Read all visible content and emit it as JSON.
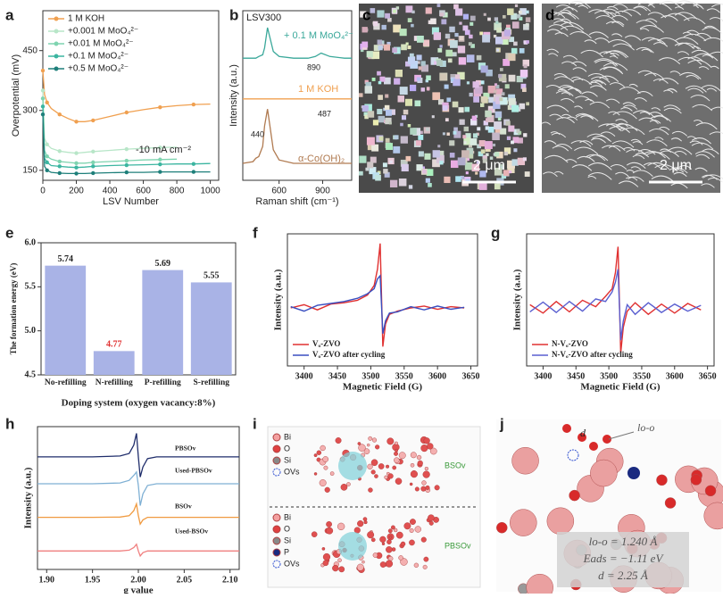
{
  "chart_data": [
    {
      "type": "line",
      "panel": "a",
      "x_label": "LSV Number",
      "y_label": "Overpotential (mV)",
      "markers": true,
      "legend": "upper left",
      "annotations": [
        "-10 mA cm⁻²"
      ],
      "x": [
        0,
        10,
        25,
        50,
        100,
        150,
        200,
        250,
        300,
        400,
        500,
        600,
        700,
        800,
        900,
        1000
      ],
      "xlim": [
        0,
        1050
      ],
      "xticks": [
        0,
        200,
        400,
        600,
        800,
        1000
      ],
      "ylim": [
        125,
        550
      ],
      "yticks": [
        150,
        300,
        450
      ],
      "series": [
        {
          "name": "1 M  KOH",
          "color": "#f0a050",
          "values": [
            400,
            340,
            320,
            305,
            290,
            280,
            272,
            272,
            275,
            285,
            295,
            302,
            308,
            312,
            315,
            316
          ]
        },
        {
          "name": "+0.001 M MoO₄²⁻",
          "color": "#b8e6c8",
          "values": [
            350,
            230,
            215,
            205,
            198,
            195,
            193,
            195,
            197,
            200,
            203,
            205,
            207,
            208,
            null,
            null
          ]
        },
        {
          "name": "+0.01 M MoO₄²⁻",
          "color": "#7fd4b0",
          "values": [
            330,
            200,
            185,
            178,
            172,
            170,
            168,
            168,
            170,
            172,
            174,
            176,
            177,
            178,
            null,
            null
          ]
        },
        {
          "name": "+0.1 M MoO₄²⁻",
          "color": "#3bb5a0",
          "values": [
            310,
            180,
            170,
            162,
            160,
            158,
            157,
            158,
            160,
            162,
            163,
            164,
            165,
            166,
            166,
            167
          ]
        },
        {
          "name": "+0.5 M MoO₄²⁻",
          "color": "#1e7f7a",
          "values": [
            290,
            160,
            150,
            145,
            143,
            142,
            142,
            142,
            143,
            144,
            145,
            145,
            146,
            146,
            146,
            146
          ]
        }
      ]
    },
    {
      "type": "line",
      "panel": "b",
      "x_label": "Raman shift (cm⁻¹)",
      "y_label": "Intensity (a.u.)",
      "legend": "inline",
      "annotations": [
        "LSV300",
        "890",
        "487",
        "440"
      ],
      "x": [
        350,
        420,
        440,
        460,
        487,
        500,
        520,
        560,
        600,
        700,
        800,
        850,
        890,
        950,
        1050,
        1100
      ],
      "xlim": [
        350,
        1100
      ],
      "xticks": [
        600,
        900
      ],
      "ylim": [
        0,
        10
      ],
      "series": [
        {
          "name": "+ 0.1 M MoO₄²⁻",
          "color": "#3aa89a",
          "values": [
            7.2,
            7.2,
            7.2,
            7.3,
            7.4,
            7.8,
            9.0,
            7.6,
            7.3,
            7.2,
            7.2,
            7.3,
            7.5,
            7.3,
            7.2,
            7.2
          ]
        },
        {
          "name": "1 M KOH",
          "color": "#f0a050",
          "values": [
            4.8,
            4.8,
            4.8,
            4.8,
            4.8,
            4.8,
            4.8,
            4.8,
            4.8,
            4.8,
            4.8,
            4.8,
            4.8,
            4.8,
            4.8,
            4.8
          ]
        },
        {
          "name": "α-Co(OH)₂",
          "color": "#b07a50",
          "values": [
            1.0,
            1.1,
            1.3,
            1.4,
            2.0,
            3.2,
            4.2,
            1.8,
            1.2,
            1.0,
            1.0,
            1.0,
            1.0,
            1.0,
            1.0,
            1.0
          ]
        }
      ]
    },
    {
      "type": "bar",
      "panel": "e",
      "x_label": "Doping system (oxygen vacancy:8%)",
      "y_label": "The formation energy (eV)",
      "categories": [
        "No-refilling",
        "N-refilling",
        "P-refilling",
        "S-refilling"
      ],
      "values": [
        5.74,
        4.77,
        5.69,
        5.55
      ],
      "color": "#a9b3e6",
      "value_label_colors": [
        "#222222",
        "#e03030",
        "#222222",
        "#222222"
      ],
      "ylim": [
        4.5,
        6.0
      ],
      "yticks": [
        4.5,
        {
          "value": 5,
          "label": "5.0"
        },
        5.5,
        {
          "value": 6,
          "label": "6.0"
        }
      ]
    },
    {
      "type": "line",
      "panel": "f",
      "x_label": "Magnetic Field (G)",
      "y_label": "Intensity (a.u.)",
      "legend": "lower left",
      "x": [
        3380,
        3400,
        3420,
        3440,
        3460,
        3480,
        3495,
        3505,
        3510,
        3514,
        3518,
        3522,
        3528,
        3540,
        3560,
        3580,
        3600,
        3620,
        3640
      ],
      "xlim": [
        3375,
        3660
      ],
      "xticks": [
        3400,
        3450,
        3500,
        3550,
        3600,
        3650
      ],
      "ylim": [
        -0.9,
        1.15
      ],
      "series": [
        {
          "name": "Vₒ-ZVO",
          "color": "#e03030",
          "values": [
            0.0,
            0.05,
            -0.03,
            0.06,
            0.08,
            0.12,
            0.2,
            0.35,
            0.6,
            1.0,
            -0.6,
            -0.25,
            -0.1,
            -0.05,
            0.0,
            0.03,
            -0.02,
            0.02,
            0.0
          ]
        },
        {
          "name": "Vₒ-ZVO after cycling",
          "color": "#3a4fc0",
          "values": [
            0.02,
            -0.05,
            0.04,
            0.07,
            0.1,
            0.15,
            0.22,
            0.3,
            0.45,
            0.5,
            -0.4,
            -0.2,
            -0.08,
            -0.06,
            0.02,
            -0.03,
            0.03,
            -0.02,
            0.01
          ]
        }
      ]
    },
    {
      "type": "line",
      "panel": "g",
      "x_label": "Magnetic Field (G)",
      "y_label": "Intensity (a.u.)",
      "legend": "lower left",
      "x": [
        3380,
        3400,
        3420,
        3440,
        3460,
        3480,
        3495,
        3505,
        3510,
        3514,
        3518,
        3522,
        3528,
        3540,
        3560,
        3580,
        3600,
        3620,
        3640
      ],
      "xlim": [
        3375,
        3660
      ],
      "xticks": [
        3400,
        3450,
        3500,
        3550,
        3600,
        3650
      ],
      "ylim": [
        -0.9,
        1.15
      ],
      "series": [
        {
          "name": "N-Vₒ-ZVO",
          "color": "#e03030",
          "values": [
            0.05,
            -0.08,
            0.1,
            -0.06,
            0.12,
            0.02,
            0.18,
            0.3,
            0.55,
            0.95,
            -0.7,
            -0.3,
            -0.05,
            0.08,
            -0.1,
            0.06,
            -0.08,
            0.07,
            -0.03
          ]
        },
        {
          "name": "N-Vₒ-ZVO after cycling",
          "color": "#5a5fd0",
          "values": [
            -0.06,
            0.09,
            -0.07,
            0.1,
            -0.05,
            0.14,
            0.1,
            0.25,
            0.4,
            0.6,
            -0.5,
            -0.2,
            0.05,
            -0.1,
            0.08,
            -0.07,
            0.06,
            -0.05,
            0.04
          ]
        }
      ]
    },
    {
      "type": "line",
      "panel": "h",
      "x_label": "g value",
      "y_label": "Intensity (a.u.)",
      "legend": "inline",
      "x": [
        1.89,
        1.95,
        1.98,
        1.99,
        1.995,
        1.998,
        2.0,
        2.002,
        2.005,
        2.01,
        2.02,
        2.05,
        2.11
      ],
      "xlim": [
        1.89,
        2.11
      ],
      "xticks": [
        {
          "value": 1.9,
          "label": "1.90"
        },
        1.95,
        {
          "value": 2,
          "label": "2.00"
        },
        2.05,
        {
          "value": 2.1,
          "label": "2.10"
        }
      ],
      "ylim": [
        1.5,
        10
      ],
      "series": [
        {
          "name": "PBSOv",
          "color": "#1f2d6b",
          "values": [
            8.2,
            8.2,
            8.25,
            8.4,
            8.9,
            9.6,
            8.2,
            7.0,
            7.6,
            8.1,
            8.2,
            8.2,
            8.2
          ]
        },
        {
          "name": "Used-PBSOv",
          "color": "#7fb0d4",
          "values": [
            6.6,
            6.6,
            6.65,
            6.8,
            7.1,
            7.3,
            6.5,
            5.3,
            6.0,
            6.5,
            6.6,
            6.6,
            6.6
          ]
        },
        {
          "name": "BSOv",
          "color": "#f09a40",
          "values": [
            4.6,
            4.6,
            4.62,
            4.7,
            5.0,
            5.4,
            4.7,
            4.2,
            4.45,
            4.6,
            4.6,
            4.6,
            4.6
          ]
        },
        {
          "name": "Used-BSOv",
          "color": "#f08080",
          "values": [
            2.6,
            2.6,
            2.6,
            2.65,
            2.8,
            3.0,
            2.6,
            2.3,
            2.5,
            2.6,
            2.6,
            2.6,
            2.6
          ]
        }
      ]
    }
  ],
  "images": [
    {
      "panel": "c",
      "scale_bar": "2 μm"
    },
    {
      "panel": "d",
      "scale_bar": "2 μm"
    }
  ],
  "structures": [
    {
      "panel": "i",
      "top_legend": [
        "Bi",
        "O",
        "Si",
        "OVs"
      ],
      "top_name": "BSOv",
      "bottom_legend": [
        "Bi",
        "O",
        "Si",
        "P",
        "OVs"
      ],
      "bottom_name": "PBSOv"
    },
    {
      "panel": "j",
      "labels": [
        "d",
        "lo-o"
      ],
      "info": [
        "lo-o = 1.240 Å",
        "Eads = −1.11 eV",
        "d = 2.25 Å"
      ]
    }
  ]
}
